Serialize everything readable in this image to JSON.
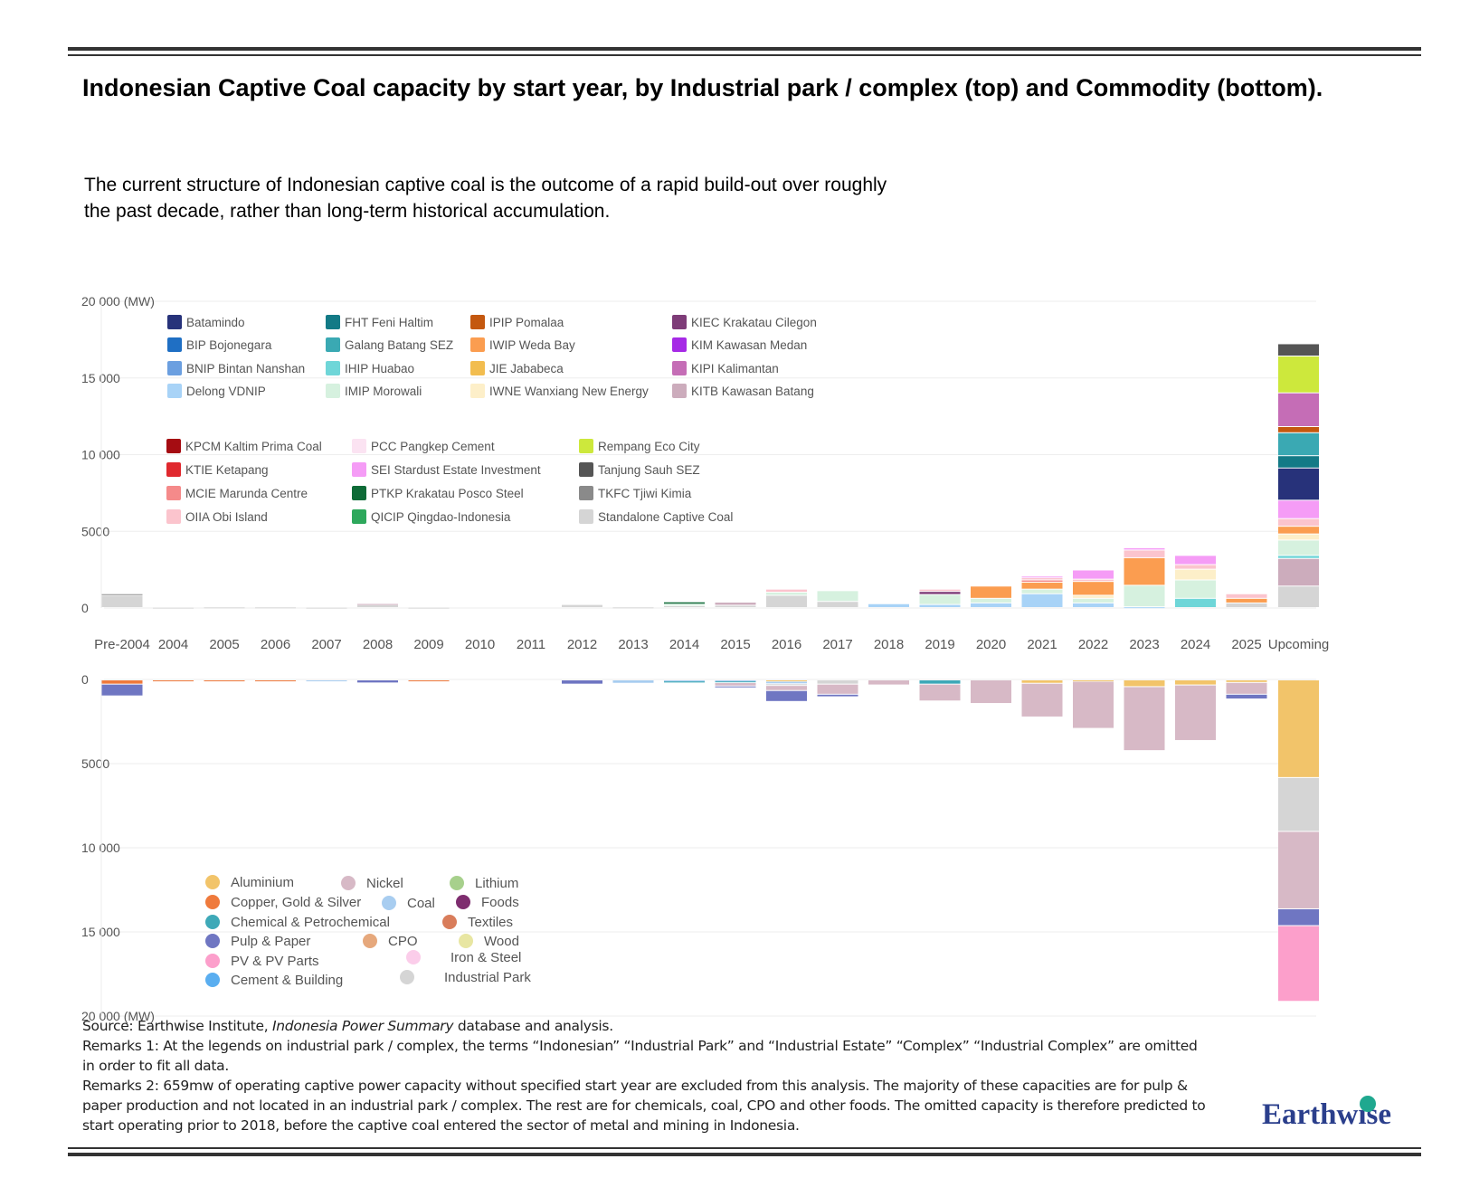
{
  "header": {
    "title": "Indonesian Captive Coal capacity by start year, by Industrial park / complex (top) and Commodity (bottom).",
    "subtitle": "The current structure of Indonesian captive coal is the outcome of a rapid build-out over roughly the past decade, rather than long-term historical accumulation."
  },
  "watermark_visual": "faint watermark text block (low-contrast)",
  "chart_data": [
    {
      "type": "bar",
      "stacked": true,
      "title": "Capacity by Industrial park / complex (top)",
      "ylabel": "(MW)",
      "ylim": [
        0,
        20000
      ],
      "yticks": [
        "0",
        "5000",
        "10 000",
        "15 000",
        "20 000"
      ],
      "categories": [
        "Pre-2004",
        "2004",
        "2005",
        "2006",
        "2007",
        "2008",
        "2009",
        "2010",
        "2011",
        "2012",
        "2013",
        "2014",
        "2015",
        "2016",
        "2017",
        "2018",
        "2019",
        "2020",
        "2021",
        "2022",
        "2023",
        "2024",
        "2025",
        "Upcoming"
      ],
      "legend": [
        {
          "name": "Batamindo",
          "color": "#27327a"
        },
        {
          "name": "BIP Bojonegara",
          "color": "#1f6fc4"
        },
        {
          "name": "BNIP Bintan Nanshan",
          "color": "#6b9fe0"
        },
        {
          "name": "Delong VDNIP",
          "color": "#a8d3f7"
        },
        {
          "name": "FHT Feni Haltim",
          "color": "#137a86"
        },
        {
          "name": "Galang Batang SEZ",
          "color": "#3aa9b3"
        },
        {
          "name": "IHIP Huabao",
          "color": "#6fd6d8"
        },
        {
          "name": "IMIP Morowali",
          "color": "#d6f1df"
        },
        {
          "name": "IPIP Pomalaa",
          "color": "#c4580f"
        },
        {
          "name": "IWIP Weda Bay",
          "color": "#fb9d50"
        },
        {
          "name": "JIE Jababeca",
          "color": "#f2bd4f"
        },
        {
          "name": "IWNE Wanxiang New Energy",
          "color": "#fdefc9"
        },
        {
          "name": "KIEC Krakatau Cilegon",
          "color": "#7e3c78"
        },
        {
          "name": "KIM Kawasan Medan",
          "color": "#a62ae6"
        },
        {
          "name": "KIPI Kalimantan",
          "color": "#c56db6"
        },
        {
          "name": "KITB Kawasan Batang",
          "color": "#ccacbc"
        },
        {
          "name": "KPCM Kaltim Prima Coal",
          "color": "#a50c12"
        },
        {
          "name": "KTIE Ketapang",
          "color": "#e0282e"
        },
        {
          "name": "MCIE Marunda Centre",
          "color": "#f58a8a"
        },
        {
          "name": "OIIA Obi Island",
          "color": "#fbc4cd"
        },
        {
          "name": "PCC Pangkep Cement",
          "color": "#fbe3f2"
        },
        {
          "name": "SEI Stardust Estate Investment",
          "color": "#f59cf6"
        },
        {
          "name": "PTKP Krakatau Posco Steel",
          "color": "#0e6b37"
        },
        {
          "name": "QICIP Qingdao-Indonesia",
          "color": "#2ea85c"
        },
        {
          "name": "Rempang Eco City",
          "color": "#cde83c"
        },
        {
          "name": "Tanjung Sauh SEZ",
          "color": "#555555"
        },
        {
          "name": "TKFC Tjiwi Kimia",
          "color": "#8a8a8a"
        },
        {
          "name": "Standalone Captive Coal",
          "color": "#d5d5d5"
        }
      ],
      "series": [
        {
          "name": "Standalone Captive Coal",
          "values": [
            800,
            20,
            40,
            40,
            20,
            180,
            20,
            0,
            0,
            200,
            40,
            120,
            150,
            800,
            400,
            0,
            0,
            0,
            0,
            0,
            0,
            0,
            300,
            1400
          ]
        },
        {
          "name": "TKFC Tjiwi Kimia",
          "values": [
            100,
            0,
            0,
            0,
            0,
            0,
            0,
            0,
            0,
            0,
            0,
            0,
            0,
            0,
            0,
            0,
            0,
            0,
            0,
            0,
            0,
            0,
            0,
            0
          ]
        },
        {
          "name": "KITB Kawasan Batang",
          "values": [
            0,
            0,
            0,
            0,
            0,
            80,
            0,
            0,
            0,
            0,
            0,
            0,
            200,
            0,
            0,
            0,
            0,
            0,
            0,
            0,
            0,
            0,
            0,
            1800
          ]
        },
        {
          "name": "Delong VDNIP",
          "values": [
            0,
            0,
            0,
            0,
            0,
            0,
            0,
            0,
            0,
            0,
            0,
            0,
            0,
            0,
            0,
            250,
            200,
            300,
            900,
            300,
            50,
            0,
            0,
            0
          ]
        },
        {
          "name": "IHIP Huabao",
          "values": [
            0,
            0,
            0,
            0,
            0,
            0,
            0,
            0,
            0,
            0,
            0,
            0,
            0,
            0,
            0,
            0,
            0,
            0,
            0,
            0,
            0,
            600,
            0,
            200
          ]
        },
        {
          "name": "IMIP Morowali",
          "values": [
            0,
            0,
            0,
            0,
            0,
            0,
            0,
            0,
            0,
            0,
            0,
            100,
            0,
            200,
            700,
            0,
            650,
            300,
            300,
            300,
            1400,
            1200,
            0,
            1000
          ]
        },
        {
          "name": "PTKP Krakatau Posco Steel",
          "values": [
            0,
            0,
            0,
            0,
            0,
            0,
            0,
            0,
            0,
            0,
            0,
            150,
            0,
            0,
            0,
            0,
            0,
            0,
            0,
            0,
            0,
            0,
            0,
            0
          ]
        },
        {
          "name": "IWNE Wanxiang New Energy",
          "values": [
            0,
            0,
            0,
            0,
            0,
            0,
            0,
            0,
            0,
            0,
            0,
            0,
            0,
            0,
            0,
            0,
            0,
            0,
            0,
            200,
            0,
            700,
            0,
            400
          ]
        },
        {
          "name": "IWIP Weda Bay",
          "values": [
            0,
            0,
            0,
            0,
            0,
            0,
            0,
            0,
            0,
            0,
            0,
            0,
            0,
            0,
            0,
            0,
            0,
            800,
            450,
            900,
            1800,
            0,
            300,
            500
          ]
        },
        {
          "name": "MCIE Marunda Centre",
          "values": [
            0,
            0,
            0,
            0,
            0,
            0,
            0,
            0,
            0,
            0,
            0,
            0,
            0,
            0,
            0,
            0,
            0,
            0,
            150,
            0,
            0,
            0,
            0,
            0
          ]
        },
        {
          "name": "KIEC Krakatau Cilegon",
          "values": [
            0,
            0,
            0,
            0,
            0,
            0,
            0,
            0,
            0,
            0,
            0,
            0,
            0,
            0,
            0,
            0,
            200,
            0,
            0,
            0,
            0,
            0,
            0,
            0
          ]
        },
        {
          "name": "OIIA Obi Island",
          "values": [
            0,
            0,
            0,
            0,
            0,
            0,
            0,
            0,
            0,
            0,
            0,
            0,
            0,
            200,
            0,
            0,
            150,
            0,
            150,
            150,
            500,
            300,
            300,
            500
          ]
        },
        {
          "name": "SEI Stardust Estate Investment",
          "values": [
            0,
            0,
            0,
            0,
            0,
            0,
            0,
            0,
            0,
            0,
            0,
            0,
            0,
            0,
            0,
            0,
            0,
            0,
            100,
            600,
            150,
            600,
            0,
            1200
          ]
        },
        {
          "name": "Batamindo",
          "values": [
            0,
            0,
            0,
            0,
            0,
            0,
            0,
            0,
            0,
            0,
            0,
            0,
            0,
            0,
            0,
            0,
            0,
            0,
            0,
            0,
            0,
            0,
            0,
            2100
          ]
        },
        {
          "name": "FHT Feni Haltim",
          "values": [
            0,
            0,
            0,
            0,
            0,
            0,
            0,
            0,
            0,
            0,
            0,
            0,
            0,
            0,
            0,
            0,
            0,
            0,
            0,
            0,
            0,
            0,
            0,
            800
          ]
        },
        {
          "name": "Galang Batang SEZ",
          "values": [
            0,
            0,
            0,
            0,
            0,
            0,
            0,
            0,
            0,
            0,
            0,
            0,
            0,
            0,
            0,
            0,
            0,
            0,
            0,
            0,
            0,
            0,
            0,
            1500
          ]
        },
        {
          "name": "IPIP Pomalaa",
          "values": [
            0,
            0,
            0,
            0,
            0,
            0,
            0,
            0,
            0,
            0,
            0,
            0,
            0,
            0,
            0,
            0,
            0,
            0,
            0,
            0,
            0,
            0,
            0,
            400
          ]
        },
        {
          "name": "KIPI Kalimantan",
          "values": [
            0,
            0,
            0,
            0,
            0,
            0,
            0,
            0,
            0,
            0,
            0,
            0,
            0,
            0,
            0,
            0,
            0,
            0,
            0,
            0,
            0,
            0,
            0,
            2200
          ]
        },
        {
          "name": "Rempang Eco City",
          "values": [
            0,
            0,
            0,
            0,
            0,
            0,
            0,
            0,
            0,
            0,
            0,
            0,
            0,
            0,
            0,
            0,
            0,
            0,
            0,
            0,
            0,
            0,
            0,
            2400
          ]
        },
        {
          "name": "Tanjung Sauh SEZ",
          "values": [
            0,
            0,
            0,
            0,
            0,
            0,
            0,
            0,
            0,
            0,
            0,
            0,
            0,
            0,
            0,
            0,
            0,
            0,
            0,
            0,
            0,
            0,
            0,
            800
          ]
        }
      ]
    },
    {
      "type": "bar",
      "stacked": true,
      "inverted": true,
      "title": "Capacity by Commodity (bottom)",
      "ylabel": "(MW)",
      "ylim": [
        0,
        20000
      ],
      "yticks": [
        "0",
        "5000",
        "10 000",
        "15 000",
        "20 000"
      ],
      "categories": [
        "Pre-2004",
        "2004",
        "2005",
        "2006",
        "2007",
        "2008",
        "2009",
        "2010",
        "2011",
        "2012",
        "2013",
        "2014",
        "2015",
        "2016",
        "2017",
        "2018",
        "2019",
        "2020",
        "2021",
        "2022",
        "2023",
        "2024",
        "2025",
        "Upcoming"
      ],
      "legend": [
        {
          "name": "Aluminium",
          "color": "#f2c46a"
        },
        {
          "name": "Nickel",
          "color": "#d7b9c6"
        },
        {
          "name": "Lithium",
          "color": "#a7d08c"
        },
        {
          "name": "Copper, Gold & Silver",
          "color": "#ef7a3c"
        },
        {
          "name": "Coal",
          "color": "#a8cdf0"
        },
        {
          "name": "Foods",
          "color": "#7e2d6f"
        },
        {
          "name": "Chemical & Petrochemical",
          "color": "#3ea9b8"
        },
        {
          "name": "Textiles",
          "color": "#d97d5b"
        },
        {
          "name": "Pulp & Paper",
          "color": "#6f76c2"
        },
        {
          "name": "CPO",
          "color": "#e6a87c"
        },
        {
          "name": "Wood",
          "color": "#e8e6a2"
        },
        {
          "name": "PV & PV Parts",
          "color": "#fc9fcb"
        },
        {
          "name": "Iron & Steel",
          "color": "#fbcdea"
        },
        {
          "name": "Cement & Building",
          "color": "#5aaef0"
        },
        {
          "name": "Industrial Park",
          "color": "#d5d5d5"
        }
      ],
      "series": [
        {
          "name": "Copper, Gold & Silver",
          "values": [
            250,
            40,
            40,
            80,
            0,
            0,
            40,
            0,
            0,
            0,
            0,
            0,
            0,
            0,
            0,
            0,
            0,
            0,
            0,
            0,
            0,
            0,
            0,
            0
          ]
        },
        {
          "name": "Aluminium",
          "values": [
            0,
            0,
            0,
            0,
            0,
            0,
            0,
            0,
            0,
            0,
            0,
            0,
            0,
            80,
            0,
            0,
            0,
            0,
            200,
            80,
            400,
            300,
            150,
            5800
          ]
        },
        {
          "name": "Coal",
          "values": [
            0,
            0,
            0,
            0,
            60,
            0,
            0,
            0,
            0,
            0,
            200,
            60,
            60,
            150,
            0,
            0,
            0,
            0,
            0,
            0,
            0,
            0,
            0,
            0
          ]
        },
        {
          "name": "Chemical & Petrochemical",
          "values": [
            0,
            0,
            0,
            0,
            0,
            0,
            0,
            0,
            0,
            0,
            0,
            120,
            100,
            0,
            0,
            0,
            250,
            0,
            0,
            0,
            0,
            0,
            0,
            0
          ]
        },
        {
          "name": "Industrial Park",
          "values": [
            0,
            0,
            0,
            0,
            0,
            0,
            0,
            0,
            0,
            0,
            0,
            0,
            0,
            100,
            250,
            0,
            0,
            0,
            0,
            0,
            0,
            0,
            0,
            3200
          ]
        },
        {
          "name": "Nickel",
          "values": [
            0,
            0,
            0,
            0,
            0,
            0,
            0,
            0,
            0,
            0,
            0,
            0,
            200,
            300,
            600,
            300,
            1000,
            1400,
            2000,
            2800,
            3800,
            3300,
            700,
            4600
          ]
        },
        {
          "name": "Pulp & Paper",
          "values": [
            700,
            0,
            0,
            0,
            0,
            180,
            0,
            0,
            0,
            250,
            0,
            0,
            80,
            650,
            150,
            0,
            0,
            0,
            0,
            0,
            0,
            0,
            280,
            1000
          ]
        },
        {
          "name": "PV & PV Parts",
          "values": [
            0,
            0,
            0,
            0,
            0,
            0,
            0,
            0,
            0,
            0,
            0,
            0,
            0,
            0,
            0,
            0,
            0,
            0,
            0,
            0,
            0,
            0,
            0,
            4500
          ]
        }
      ],
      "legend_position": "lower-left"
    }
  ],
  "x_axis_labels": [
    "Pre-2004",
    "2004",
    "2005",
    "2006",
    "2007",
    "2008",
    "2009",
    "2010",
    "2011",
    "2012",
    "2013",
    "2014",
    "2015",
    "2016",
    "2017",
    "2018",
    "2019",
    "2020",
    "2021",
    "2022",
    "2023",
    "2024",
    "2025",
    "Upcoming"
  ],
  "notes": {
    "source_prefix": "Source: Earthwise Institute, ",
    "source_italic": "Indonesia Power Summary",
    "source_suffix": " database and analysis.",
    "remarks1": "Remarks 1: At the legends on industrial park / complex, the terms “Indonesian” “Industrial Park” and “Industrial Estate” “Complex” “Industrial Complex” are omitted in order to fit all data.",
    "remarks2": "Remarks 2: 659mw of operating captive power capacity without specified start year are excluded from this analysis. The majority of these capacities are for pulp & paper production and not located in an industrial park / complex. The rest are for chemicals, coal, CPO and other foods. The omitted capacity is therefore predicted to start operating prior to 2018, before the captive coal entered the sector of metal and mining in Indonesia."
  },
  "logo": {
    "text": "Earthwise"
  }
}
